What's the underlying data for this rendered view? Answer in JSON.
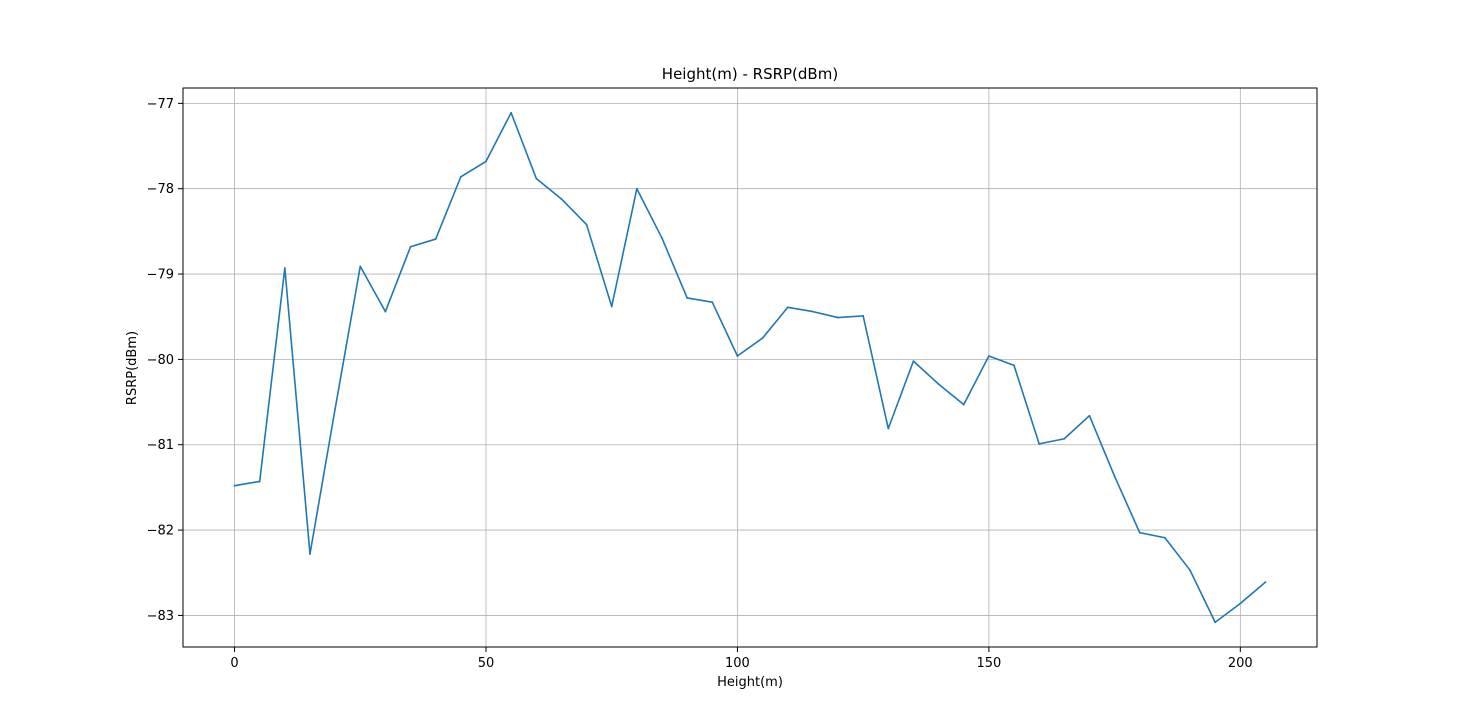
{
  "chart_data": {
    "type": "line",
    "title": "Height(m) - RSRP(dBm)",
    "xlabel": "Height(m)",
    "ylabel": "RSRP(dBm)",
    "xlim": [
      -10.25,
      215.25
    ],
    "ylim": [
      -83.37,
      -76.82
    ],
    "grid": true,
    "xticks": [
      0,
      50,
      100,
      150,
      200
    ],
    "xtick_labels": [
      "0",
      "50",
      "100",
      "150",
      "200"
    ],
    "yticks": [
      -77,
      -78,
      -79,
      -80,
      -81,
      -82,
      -83
    ],
    "ytick_labels": [
      "−77",
      "−78",
      "−79",
      "−80",
      "−81",
      "−82",
      "−83"
    ],
    "series": [
      {
        "name": "RSRP",
        "color": "#1f77b4",
        "x": [
          0,
          5,
          10,
          15,
          20,
          25,
          30,
          35,
          40,
          45,
          50,
          55,
          60,
          65,
          70,
          75,
          80,
          85,
          90,
          95,
          100,
          105,
          110,
          115,
          120,
          125,
          130,
          135,
          140,
          145,
          150,
          155,
          160,
          165,
          170,
          175,
          180,
          185,
          190,
          195,
          200,
          205
        ],
        "y": [
          -81.48,
          -81.43,
          -78.93,
          -82.28,
          -80.58,
          -78.91,
          -79.44,
          -78.68,
          -78.59,
          -77.86,
          -77.68,
          -77.11,
          -77.88,
          -78.12,
          -78.42,
          -79.38,
          -78.0,
          -78.58,
          -79.28,
          -79.33,
          -79.96,
          -79.75,
          -79.39,
          -79.44,
          -79.51,
          -79.49,
          -80.81,
          -80.02,
          -80.29,
          -80.53,
          -79.96,
          -80.07,
          -80.99,
          -80.93,
          -80.66,
          -81.37,
          -82.03,
          -82.09,
          -82.47,
          -83.08,
          -82.86,
          -82.61
        ]
      }
    ]
  }
}
